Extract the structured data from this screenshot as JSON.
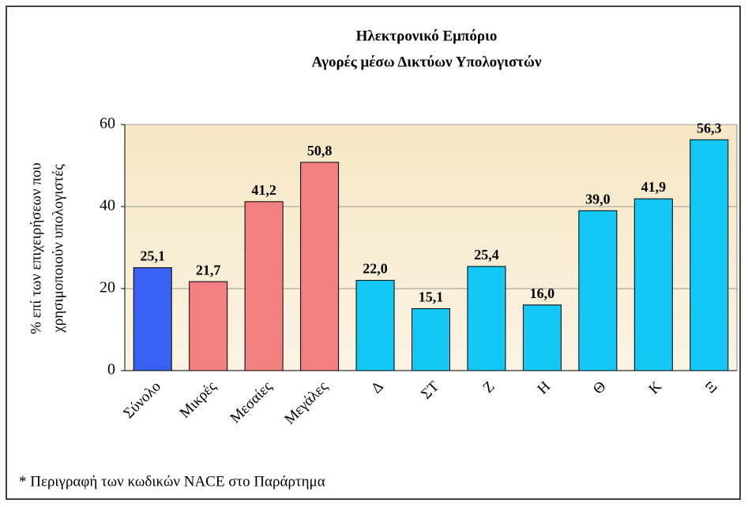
{
  "chart_data": {
    "type": "bar",
    "title": [
      "Ηλεκτρονικό Εμπόριο",
      "Αγορές μέσω Δικτύων Υπολογιστών"
    ],
    "y_label": [
      "% επί των επιχειρήσεων που",
      "χρησιμοποιούν υπολογιστές"
    ],
    "footnote": "* Περιγραφή των κωδικών NACE στο Παράρτημα",
    "categories": [
      "Σύνολο",
      "Μικρές",
      "Μεσαίες",
      "Μεγάλες",
      "Δ",
      "ΣΤ",
      "Ζ",
      "Η",
      "Θ",
      "Κ",
      "Ξ"
    ],
    "values": [
      25.1,
      21.7,
      41.2,
      50.8,
      22.0,
      15.1,
      25.4,
      16.0,
      39.0,
      41.9,
      56.3
    ],
    "value_labels": [
      "25,1",
      "21,7",
      "41,2",
      "50,8",
      "22,0",
      "15,1",
      "25,4",
      "16,0",
      "39,0",
      "41,9",
      "56,3"
    ],
    "colors": [
      "#3a62f2",
      "#f28080",
      "#f28080",
      "#f28080",
      "#14c8f5",
      "#14c8f5",
      "#14c8f5",
      "#14c8f5",
      "#14c8f5",
      "#14c8f5",
      "#14c8f5"
    ],
    "ylim": [
      0,
      60
    ],
    "yticks": [
      0,
      20,
      40,
      60
    ],
    "grid": true
  }
}
